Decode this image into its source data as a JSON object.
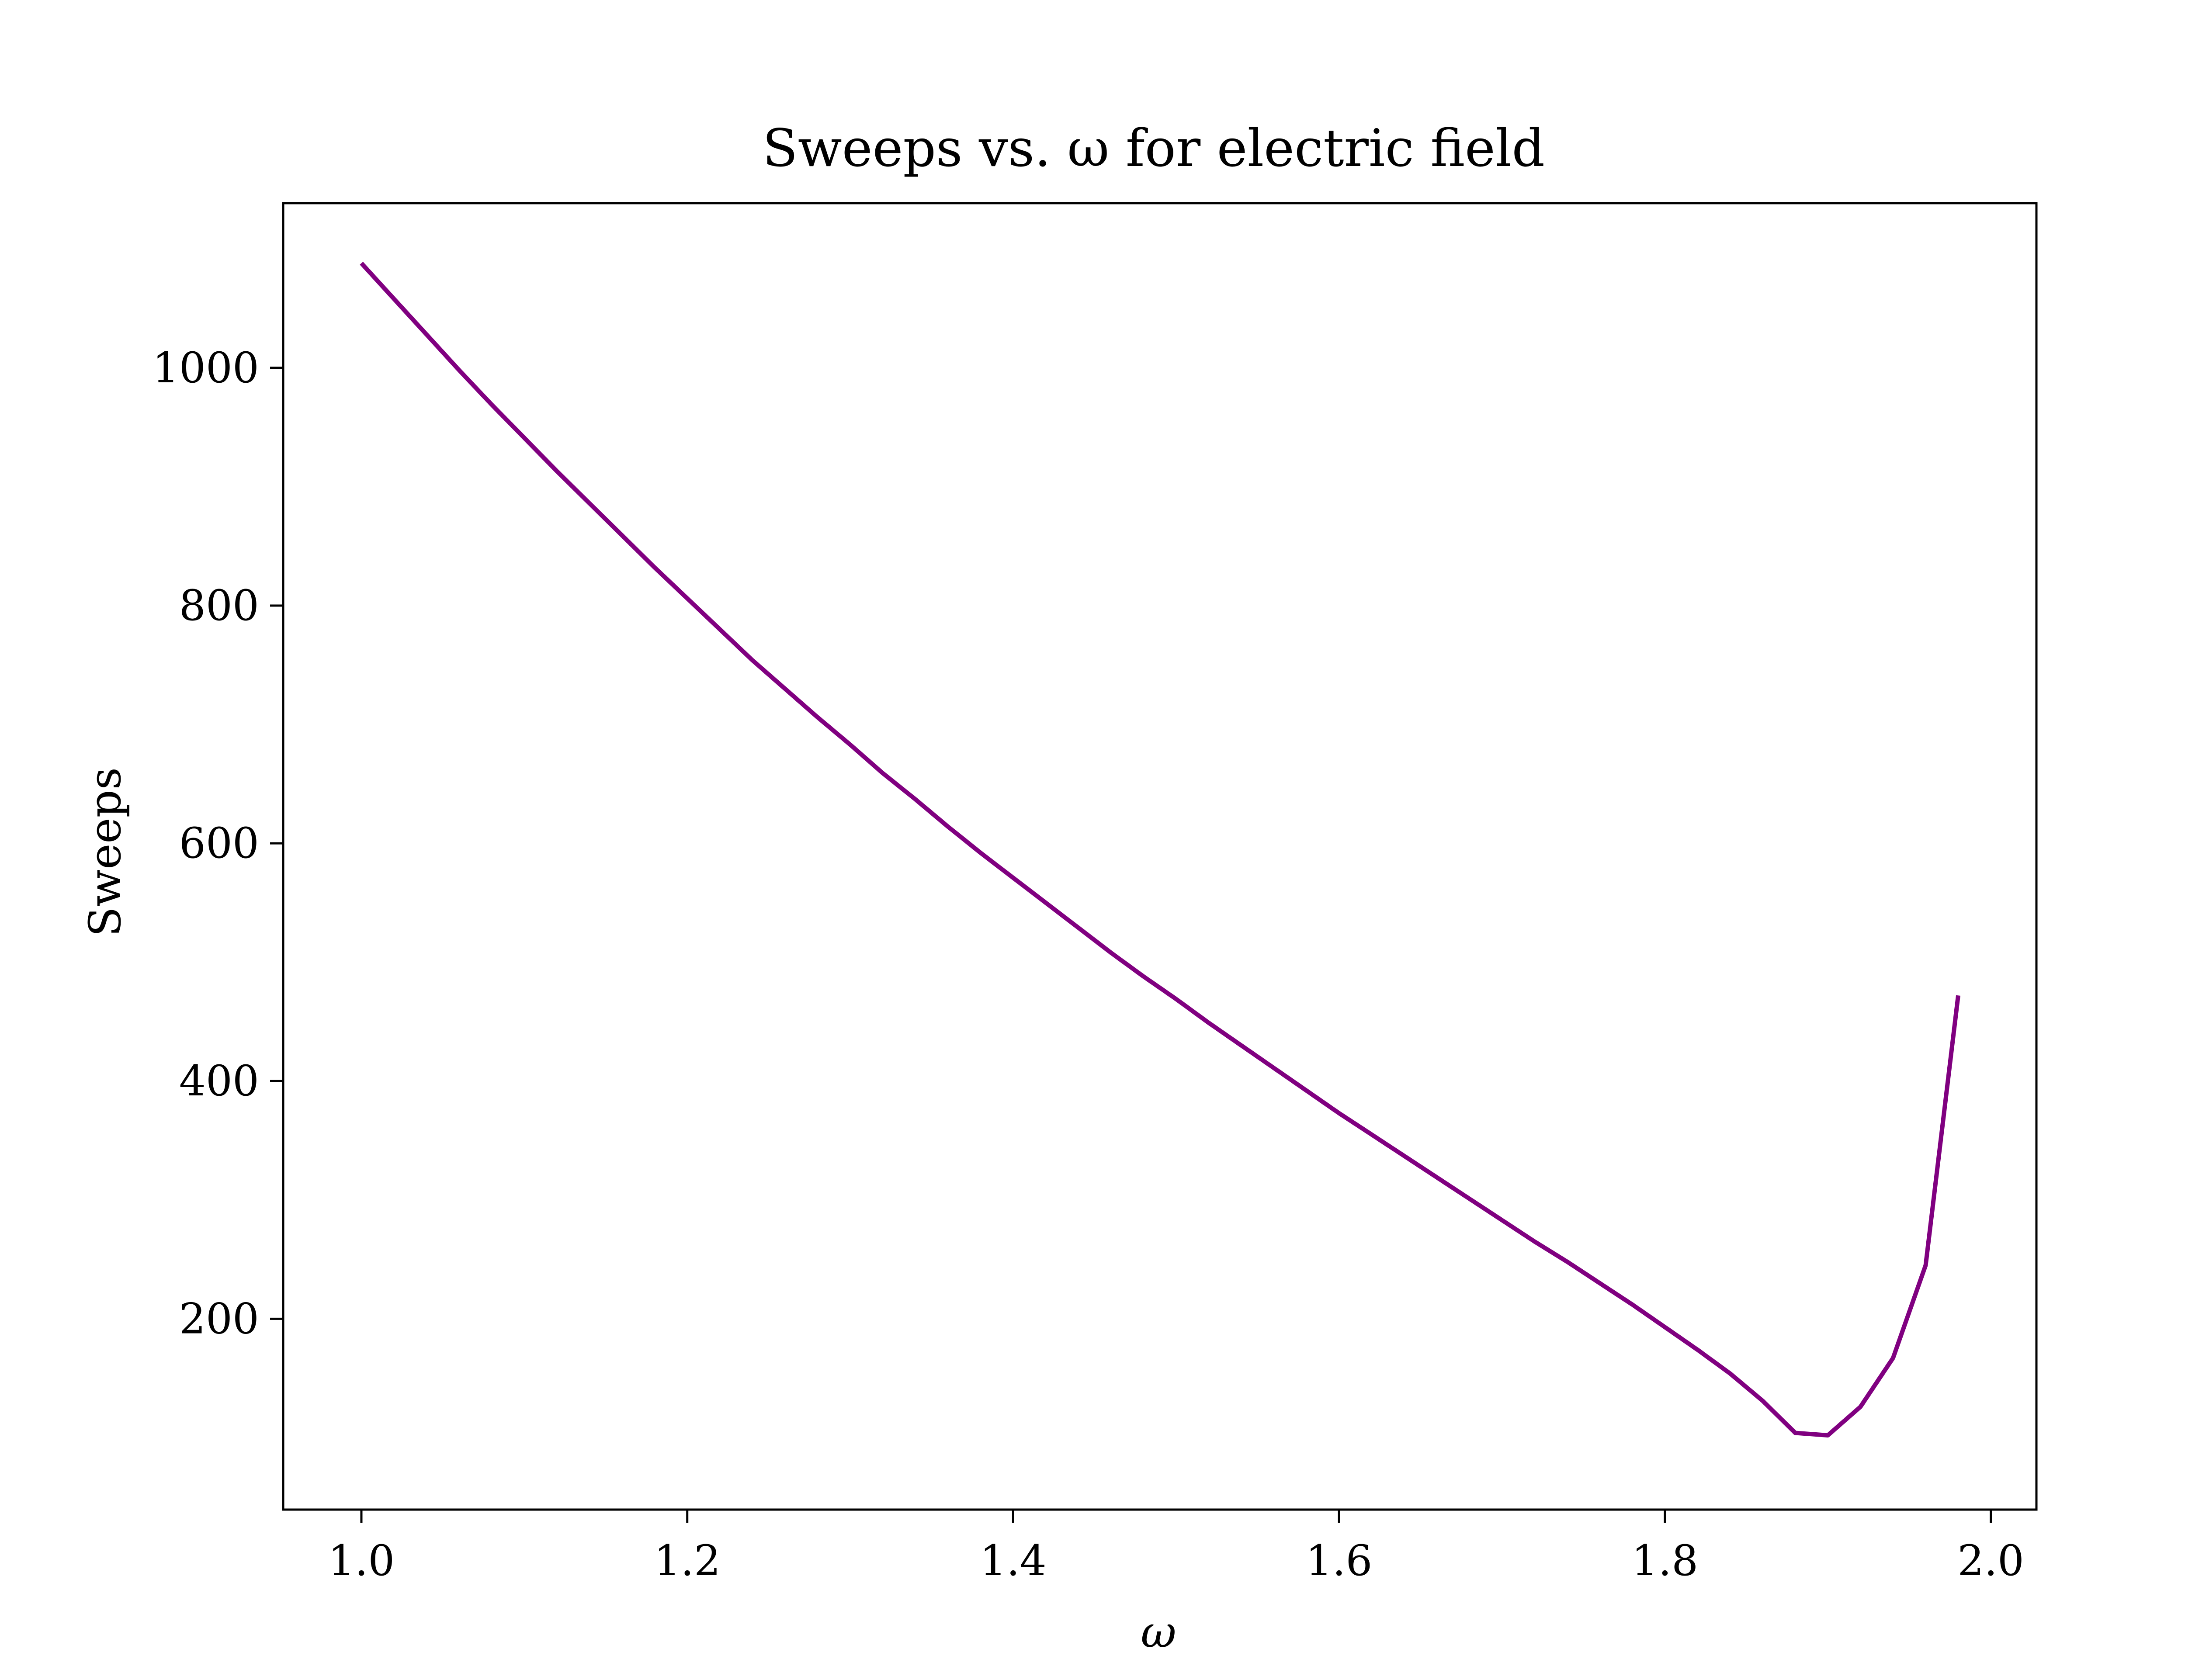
{
  "chart_data": {
    "type": "line",
    "title": "Sweeps vs. ω for electric field",
    "xlabel": "ω",
    "ylabel": "Sweeps",
    "xlim": [
      0.952,
      2.028
    ],
    "ylim": [
      39.5,
      1138.5
    ],
    "x_ticks": [
      1.0,
      1.2,
      1.4,
      1.6,
      1.8,
      2.0
    ],
    "x_tick_labels": [
      "1.0",
      "1.2",
      "1.4",
      "1.6",
      "1.8",
      "2.0"
    ],
    "y_ticks": [
      200,
      400,
      600,
      800,
      1000
    ],
    "y_tick_labels": [
      "200",
      "400",
      "600",
      "800",
      "1000"
    ],
    "grid": false,
    "series": [
      {
        "color": "#800080",
        "x": [
          1.0,
          1.02,
          1.04,
          1.06,
          1.08,
          1.1,
          1.12,
          1.14,
          1.16,
          1.18,
          1.2,
          1.22,
          1.24,
          1.26,
          1.28,
          1.3,
          1.32,
          1.34,
          1.36,
          1.38,
          1.4,
          1.42,
          1.44,
          1.46,
          1.48,
          1.5,
          1.52,
          1.54,
          1.56,
          1.58,
          1.6,
          1.62,
          1.64,
          1.66,
          1.68,
          1.7,
          1.72,
          1.74,
          1.76,
          1.78,
          1.8,
          1.82,
          1.84,
          1.86,
          1.88,
          1.9,
          1.92,
          1.94,
          1.96,
          1.98
        ],
        "y": [
          1088,
          1058,
          1028,
          998,
          969,
          941,
          913,
          886,
          859,
          832,
          806,
          780,
          754,
          730,
          706,
          683,
          659,
          637,
          614,
          592,
          571,
          550,
          529,
          508,
          488,
          469,
          449,
          430,
          411,
          392,
          373,
          355,
          337,
          319,
          301,
          283,
          265,
          248,
          230,
          212,
          193,
          174,
          154,
          131,
          104,
          102,
          126,
          167,
          245,
          472
        ]
      }
    ]
  }
}
